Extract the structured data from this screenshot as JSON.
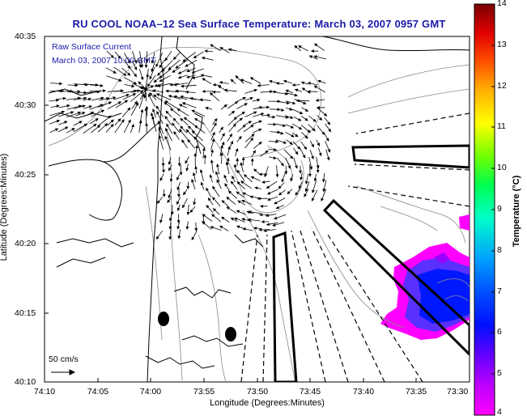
{
  "title": "RU COOL  NOAA–12  Sea Surface Temperature:  March 03, 2007 0957 GMT",
  "subtitle_line1": "Raw Surface Current",
  "subtitle_line2": "March 03, 2007 10:00 GMT",
  "colors": {
    "title": "#1a1aa8",
    "colorbar": [
      "#ff00ff",
      "#9d00ff",
      "#0000ff",
      "#0040ff",
      "#00a0ff",
      "#00ffc0",
      "#00ff40",
      "#80ff00",
      "#ffff00",
      "#ffa000",
      "#ff4000",
      "#e00000",
      "#800000"
    ]
  },
  "chart_data": {
    "type": "map",
    "xlabel": "Longitude (Degrees:Minutes)",
    "ylabel": "Latitude (Degrees:Minutes)",
    "x_ticks": [
      "74:10",
      "74:05",
      "74:00",
      "73:55",
      "73:50",
      "73:45",
      "73:40",
      "73:35",
      "73:30"
    ],
    "y_ticks": [
      "40:35",
      "40:30",
      "40:25",
      "40:20",
      "40:15",
      "40:10"
    ],
    "colorbar": {
      "label": "Temperature (°C)",
      "ticks": [
        "14",
        "13",
        "12",
        "11",
        "10",
        "9",
        "8",
        "7",
        "6",
        "5",
        "4"
      ],
      "range": [
        4,
        14
      ]
    },
    "scale_arrow_label": "50 cm/s"
  }
}
